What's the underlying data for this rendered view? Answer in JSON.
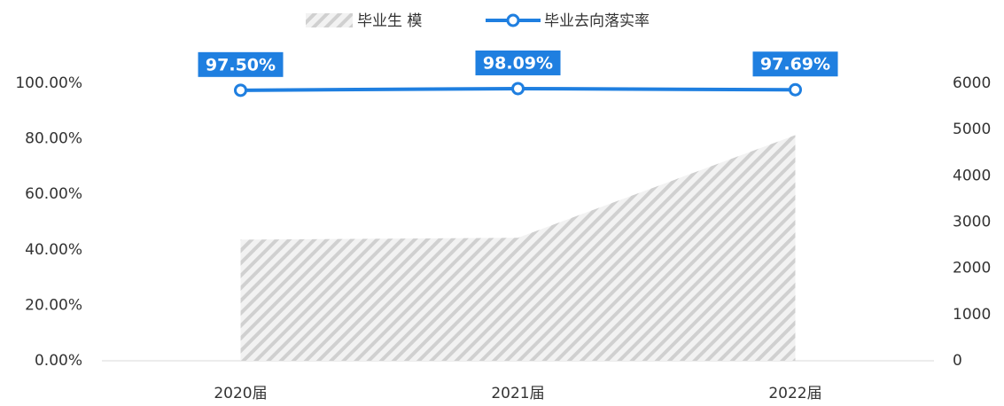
{
  "chart_data": {
    "type": "area-line",
    "categories": [
      "2020届",
      "2021届",
      "2022届"
    ],
    "series": [
      {
        "name": "毕业生 模",
        "type": "area",
        "color": "#d9d9d9",
        "axis": "y2",
        "values": [
          2620,
          2660,
          4880
        ]
      },
      {
        "name": "毕业去向落实率",
        "type": "line",
        "color": "#1f7fe0",
        "values": [
          97.5,
          98.09,
          97.69
        ],
        "value_labels": [
          "97.50%",
          "98.09%",
          "97.69%"
        ]
      }
    ],
    "ylim": [
      0,
      100
    ],
    "yticks": [
      {
        "value": 0,
        "label": "0.00%"
      },
      {
        "value": 20,
        "label": "20.00%"
      },
      {
        "value": 40,
        "label": "40.00%"
      },
      {
        "value": 60,
        "label": "60.00%"
      },
      {
        "value": 80,
        "label": "80.00%"
      },
      {
        "value": 100,
        "label": "100.00%"
      }
    ],
    "y2lim": [
      0,
      6000
    ],
    "y2ticks": [
      0,
      1000,
      2000,
      3000,
      4000,
      5000,
      6000
    ],
    "legend": "top"
  }
}
